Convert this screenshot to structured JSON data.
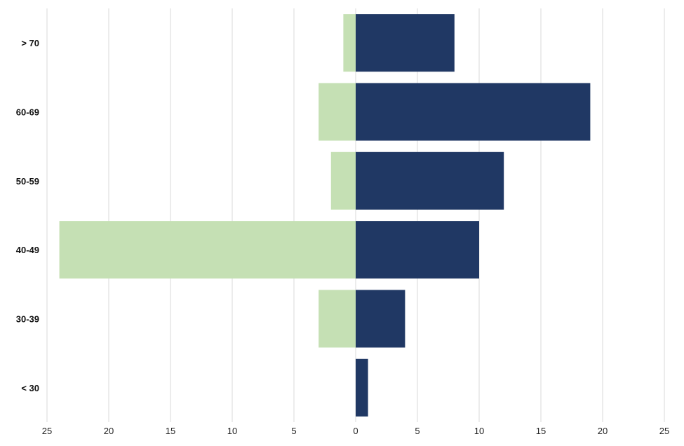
{
  "chart_data": {
    "type": "bar",
    "orientation": "horizontal",
    "diverging": true,
    "categories": [
      "> 70",
      "60-69",
      "50-59",
      "40-49",
      "30-39",
      "< 30"
    ],
    "series": [
      {
        "values": [
          1,
          3,
          2,
          24,
          3,
          0
        ],
        "side": "left",
        "color": "#c5e0b4"
      },
      {
        "values": [
          8,
          19,
          12,
          10,
          4,
          1
        ],
        "side": "right",
        "color": "#203864"
      }
    ],
    "xlim": [
      -25,
      25
    ],
    "x_ticks": [
      -25,
      -20,
      -15,
      -10,
      -5,
      0,
      5,
      10,
      15,
      20,
      25
    ],
    "x_tick_labels": [
      "25",
      "20",
      "15",
      "10",
      "5",
      "0",
      "5",
      "10",
      "15",
      "20",
      "25"
    ],
    "grid": "vertical",
    "legend": "none"
  }
}
